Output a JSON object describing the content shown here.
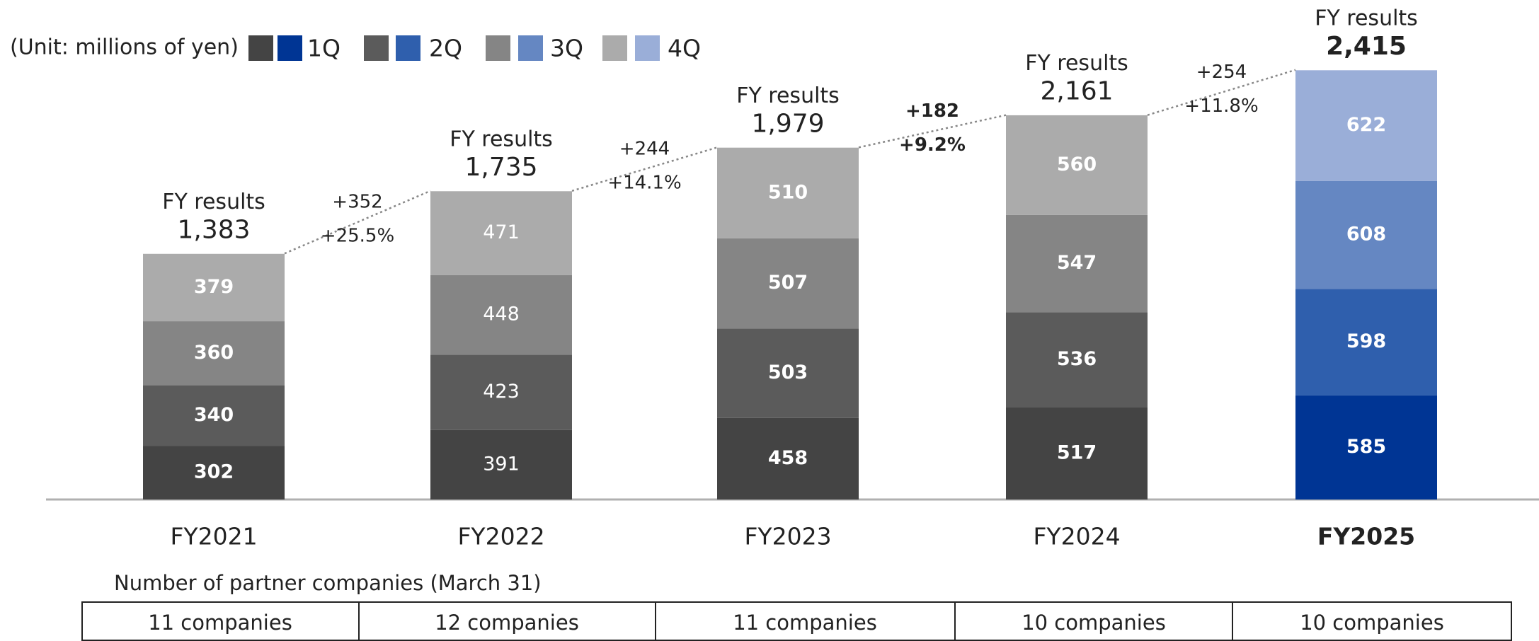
{
  "chart_data": {
    "type": "stacked_bar",
    "unit_label": "(Unit: millions of yen)",
    "categories": [
      "FY2021",
      "FY2022",
      "FY2023",
      "FY2024",
      "FY2025"
    ],
    "series": [
      {
        "name": "1Q",
        "color": "#444444",
        "highlight_color": "#003594",
        "values": [
          302,
          391,
          458,
          517,
          585
        ]
      },
      {
        "name": "2Q",
        "color": "#5b5b5b",
        "highlight_color": "#2f5fad",
        "values": [
          340,
          423,
          503,
          536,
          598
        ]
      },
      {
        "name": "3Q",
        "color": "#858585",
        "highlight_color": "#6587c2",
        "values": [
          360,
          448,
          507,
          547,
          608
        ]
      },
      {
        "name": "4Q",
        "color": "#ababab",
        "highlight_color": "#9aaed8",
        "values": [
          379,
          471,
          510,
          560,
          622
        ]
      }
    ],
    "highlight": [
      false,
      false,
      false,
      false,
      true
    ],
    "bold_value_labels": [
      true,
      false,
      true,
      true,
      true
    ],
    "total_title": "FY results",
    "totals": [
      1383,
      1735,
      1979,
      2161,
      2415
    ],
    "total_labels": [
      "1,383",
      "1,735",
      "1,979",
      "2,161",
      "2,415"
    ],
    "growth": [
      {
        "abs": "+352",
        "pct": "+25.5%",
        "bold": false
      },
      {
        "abs": "+244",
        "pct": "+14.1%",
        "bold": false
      },
      {
        "abs": "+182",
        "pct": "+9.2%",
        "bold": true
      },
      {
        "abs": "+254",
        "pct": "+11.8%",
        "bold": false
      }
    ],
    "ylim": [
      0,
      2800
    ],
    "table": {
      "title": "Number of partner companies (March 31)",
      "cells": [
        "11 companies",
        "12 companies",
        "11 companies",
        "10 companies",
        "10 companies"
      ]
    }
  }
}
